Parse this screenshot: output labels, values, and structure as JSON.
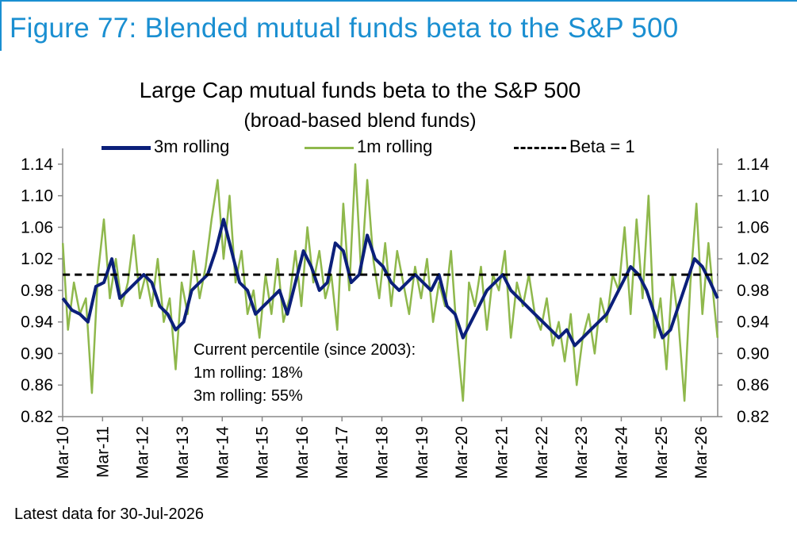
{
  "figure": {
    "title": "Figure 77: Blended mutual funds beta to the S&P 500",
    "accent_color": "#1a8fd1"
  },
  "footnote": "Latest data for 30-Jul-2026",
  "annotation": {
    "line1": "Current percentile (since 2003):",
    "line2": "1m rolling: 18%",
    "line3": "3m rolling: 55%"
  },
  "chart_data": {
    "type": "line",
    "title": "Large Cap mutual funds beta to the S&P 500",
    "subtitle": "(broad-based blend funds)",
    "xlabel": "",
    "ylabel": "",
    "x_ticks": [
      "Mar-10",
      "Mar-11",
      "Mar-12",
      "Mar-13",
      "Mar-14",
      "Mar-15",
      "Mar-16",
      "Mar-17",
      "Mar-18",
      "Mar-19",
      "Mar-20",
      "Mar-21",
      "Mar-22",
      "Mar-23",
      "Mar-24",
      "Mar-25",
      "Mar-26"
    ],
    "x_range": [
      2010.167,
      2026.583
    ],
    "ylim": [
      0.82,
      1.16
    ],
    "y_ticks": [
      "0.82",
      "0.86",
      "0.90",
      "0.94",
      "0.98",
      "1.02",
      "1.06",
      "1.10",
      "1.14"
    ],
    "y_ticks_right": [
      "0.82",
      "0.86",
      "0.90",
      "0.94",
      "0.98",
      "1.02",
      "1.06",
      "1.10",
      "1.14"
    ],
    "grid": false,
    "legend_position": "top",
    "series": [
      {
        "name": "3m rolling",
        "color": "#0b1f7a",
        "x": [
          2010.17,
          2010.4,
          2010.6,
          2010.8,
          2011.0,
          2011.2,
          2011.4,
          2011.6,
          2011.8,
          2012.0,
          2012.2,
          2012.4,
          2012.6,
          2012.8,
          2013.0,
          2013.2,
          2013.4,
          2013.6,
          2013.8,
          2014.0,
          2014.2,
          2014.4,
          2014.6,
          2014.8,
          2015.0,
          2015.2,
          2015.4,
          2015.6,
          2015.8,
          2016.0,
          2016.2,
          2016.4,
          2016.6,
          2016.8,
          2017.0,
          2017.2,
          2017.4,
          2017.6,
          2017.8,
          2018.0,
          2018.2,
          2018.4,
          2018.6,
          2018.8,
          2019.0,
          2019.2,
          2019.4,
          2019.6,
          2019.8,
          2020.0,
          2020.2,
          2020.4,
          2020.6,
          2020.8,
          2021.0,
          2021.2,
          2021.4,
          2021.6,
          2021.8,
          2022.0,
          2022.2,
          2022.4,
          2022.6,
          2022.8,
          2023.0,
          2023.2,
          2023.4,
          2023.6,
          2023.8,
          2024.0,
          2024.2,
          2024.4,
          2024.6,
          2024.8,
          2025.0,
          2025.2,
          2025.4,
          2025.6,
          2025.8,
          2026.0,
          2026.2,
          2026.4,
          2026.58
        ],
        "y": [
          0.97,
          0.955,
          0.95,
          0.94,
          0.985,
          0.99,
          1.02,
          0.97,
          0.98,
          0.99,
          1.0,
          0.99,
          0.96,
          0.95,
          0.93,
          0.94,
          0.98,
          0.99,
          1.0,
          1.03,
          1.07,
          1.03,
          0.99,
          0.98,
          0.95,
          0.96,
          0.97,
          0.98,
          0.95,
          0.99,
          1.03,
          1.01,
          0.98,
          0.99,
          1.04,
          1.03,
          0.99,
          1.0,
          1.05,
          1.02,
          1.01,
          0.99,
          0.98,
          0.99,
          1.0,
          0.99,
          0.98,
          1.0,
          0.96,
          0.95,
          0.92,
          0.94,
          0.96,
          0.98,
          0.99,
          1.0,
          0.98,
          0.97,
          0.96,
          0.95,
          0.94,
          0.93,
          0.92,
          0.93,
          0.91,
          0.92,
          0.93,
          0.94,
          0.95,
          0.97,
          0.99,
          1.01,
          1.0,
          0.98,
          0.95,
          0.92,
          0.93,
          0.96,
          0.99,
          1.02,
          1.01,
          0.99,
          0.97
        ]
      },
      {
        "name": "1m rolling",
        "color": "#8fb84c",
        "x": [
          2010.17,
          2010.3,
          2010.45,
          2010.6,
          2010.75,
          2010.9,
          2011.05,
          2011.2,
          2011.35,
          2011.5,
          2011.65,
          2011.8,
          2011.95,
          2012.1,
          2012.25,
          2012.4,
          2012.55,
          2012.7,
          2012.85,
          2013.0,
          2013.15,
          2013.3,
          2013.45,
          2013.6,
          2013.75,
          2013.9,
          2014.05,
          2014.2,
          2014.35,
          2014.5,
          2014.65,
          2014.8,
          2014.95,
          2015.1,
          2015.25,
          2015.4,
          2015.55,
          2015.7,
          2015.85,
          2016.0,
          2016.15,
          2016.3,
          2016.45,
          2016.6,
          2016.75,
          2016.9,
          2017.05,
          2017.2,
          2017.35,
          2017.5,
          2017.65,
          2017.8,
          2017.95,
          2018.1,
          2018.25,
          2018.4,
          2018.55,
          2018.7,
          2018.85,
          2019.0,
          2019.15,
          2019.3,
          2019.45,
          2019.6,
          2019.75,
          2019.9,
          2020.05,
          2020.2,
          2020.35,
          2020.5,
          2020.65,
          2020.8,
          2020.95,
          2021.1,
          2021.25,
          2021.4,
          2021.55,
          2021.7,
          2021.85,
          2022.0,
          2022.15,
          2022.3,
          2022.45,
          2022.6,
          2022.75,
          2022.9,
          2023.05,
          2023.2,
          2023.35,
          2023.5,
          2023.65,
          2023.8,
          2023.95,
          2024.1,
          2024.25,
          2024.4,
          2024.55,
          2024.7,
          2024.85,
          2025.0,
          2025.15,
          2025.3,
          2025.45,
          2025.6,
          2025.75,
          2025.9,
          2026.05,
          2026.2,
          2026.35,
          2026.5,
          2026.58
        ],
        "y": [
          1.04,
          0.93,
          0.99,
          0.95,
          0.97,
          0.85,
          1.0,
          1.07,
          0.97,
          1.02,
          0.96,
          0.99,
          1.05,
          0.97,
          1.0,
          0.96,
          1.02,
          0.94,
          0.97,
          0.88,
          0.99,
          0.95,
          1.03,
          0.97,
          1.01,
          1.07,
          1.12,
          1.02,
          1.1,
          0.99,
          1.03,
          0.95,
          0.98,
          0.92,
          1.0,
          0.95,
          1.02,
          0.94,
          0.97,
          1.03,
          0.96,
          1.06,
          0.99,
          1.03,
          0.97,
          1.0,
          0.93,
          1.09,
          0.98,
          1.14,
          1.0,
          1.12,
          1.02,
          0.97,
          1.04,
          0.96,
          1.03,
          0.99,
          0.95,
          1.01,
          0.97,
          1.02,
          0.94,
          0.99,
          0.96,
          1.03,
          0.92,
          0.84,
          0.99,
          0.96,
          1.01,
          0.93,
          1.0,
          0.98,
          1.03,
          0.92,
          0.99,
          0.96,
          1.0,
          0.95,
          0.93,
          0.97,
          0.91,
          0.94,
          0.89,
          0.95,
          0.86,
          0.92,
          0.95,
          0.9,
          0.97,
          0.94,
          1.0,
          0.98,
          1.06,
          0.95,
          1.07,
          0.97,
          1.1,
          0.92,
          0.97,
          0.88,
          1.0,
          0.94,
          0.84,
          0.99,
          1.09,
          0.95,
          1.04,
          0.96,
          0.92
        ]
      },
      {
        "name": "Beta = 1",
        "color": "#000000",
        "style": "dashed",
        "x": [
          2010.17,
          2026.58
        ],
        "y": [
          1.0,
          1.0
        ]
      }
    ]
  }
}
